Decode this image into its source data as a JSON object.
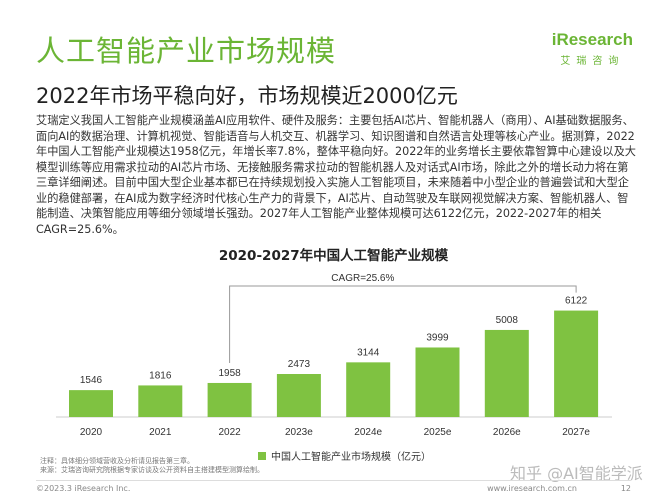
{
  "page": {
    "title": "人工智能产业市场规模",
    "subtitle": "2022年市场平稳向好，市场规模近2000亿元",
    "body": "艾瑞定义我国人工智能产业规模涵盖AI应用软件、硬件及服务：主要包括AI芯片、智能机器人（商用）、AI基础数据服务、面向AI的数据治理、计算机视觉、智能语音与人机交互、机器学习、知识图谱和自然语言处理等核心产业。据测算，2022年中国人工智能产业规模达1958亿元，年增长率7.8%，整体平稳向好。2022年的业务增长主要依靠智算中心建设以及大模型训练等应用需求拉动的AI芯片市场、无接触服务需求拉动的智能机器人及对话式AI市场，除此之外的增长动力将在第三章详细阐述。目前中国大型企业基本都已在持续规划投入实施人工智能项目，未来随着中小型企业的普遍尝试和大型企业的稳健部署，在AI成为数字经济时代核心生产力的背景下，AI芯片、自动驾驶及车联网视觉解决方案、智能机器人、智能制造、决策智能应用等细分领域增长强劲。2027年人工智能产业整体规模可达6122亿元，2022-2027年的相关CAGR=25.6%。",
    "notes_line1": "注释：具体细分领域营收及分析请见报告第三章。",
    "notes_line2": "来源：艾瑞咨询研究院根据专家访谈及公开资料自主搭建模型测算绘制。",
    "footer_left": "©2023.3 iResearch Inc.",
    "footer_right": "www.iresearch.com.cn",
    "page_number": "12",
    "watermark": "知乎 @AI智能学派"
  },
  "logo": {
    "text": "iResearch",
    "sub": "艾瑞咨询"
  },
  "colors": {
    "accent": "#6bb535",
    "bar": "#7fc241",
    "bar_light": "#a9d678"
  },
  "chart_data": {
    "type": "bar",
    "title": "2020-2027年中国人工智能产业规模",
    "categories": [
      "2020",
      "2021",
      "2022",
      "2023e",
      "2024e",
      "2025e",
      "2026e",
      "2027e"
    ],
    "series": [
      {
        "name": "中国人工智能产业市场规模（亿元）",
        "values": [
          1546,
          1816,
          1958,
          2473,
          3144,
          3999,
          5008,
          6122
        ]
      }
    ],
    "value_labels": [
      "1546",
      "1816",
      "1958",
      "2473",
      "3144",
      "3999",
      "5008",
      "6122"
    ],
    "annotation": "CAGR=25.6%",
    "ylim": [
      0,
      6500
    ],
    "grid": false,
    "legend_position": "bottom"
  }
}
